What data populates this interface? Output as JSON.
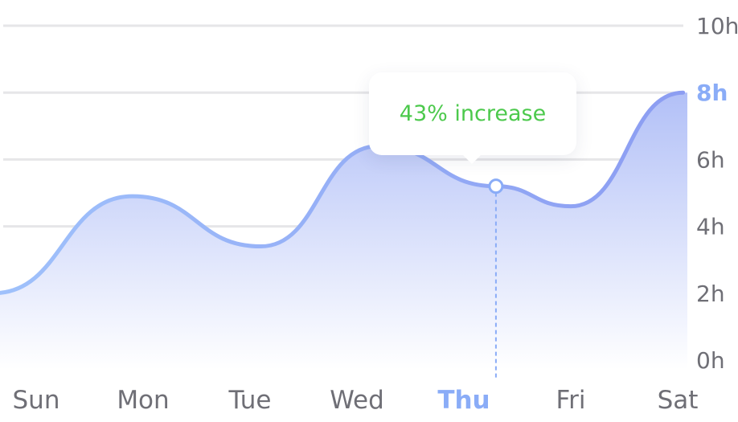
{
  "chart_data": {
    "type": "area",
    "categories": [
      "Sun",
      "Mon",
      "Tue",
      "Wed",
      "Thu",
      "Fri",
      "Sat"
    ],
    "x": [
      -0.4,
      0.9,
      2.1,
      3.2,
      4.3,
      5.0,
      6.05
    ],
    "values": [
      2.0,
      4.9,
      3.4,
      6.4,
      5.2,
      4.6,
      8.0
    ],
    "ylim": [
      0,
      10
    ],
    "yticks": [
      0,
      2,
      4,
      6,
      8,
      10
    ],
    "ytick_labels": [
      "0h",
      "2h",
      "4h",
      "6h",
      "8h",
      "10h"
    ],
    "highlight_tick": "8h",
    "highlight_category": "Thu",
    "marker": {
      "x": 4.3,
      "y": 5.2
    },
    "annotation": "43% increase",
    "colors": {
      "line_start": "#9fc1fb",
      "line_end": "#8c9df2",
      "fill_top": "#b2c0f7",
      "fill_bottom": "#ffffff",
      "grid": "#e6e6e8",
      "annotation": "#4cc94c"
    },
    "grid": true
  }
}
